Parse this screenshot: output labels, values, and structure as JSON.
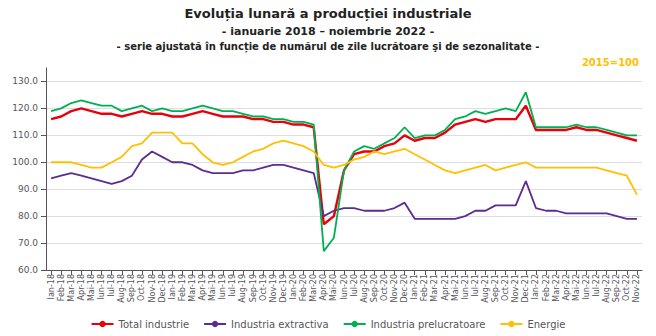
{
  "chart_data": {
    "type": "line",
    "title": "Evoluția lunară a producției industriale",
    "subtitle": [
      "- ianuarie 2018 – noiembrie 2022 -",
      "- serie ajustată în funcție de numărul de zile lucrătoare şi de sezonalitate -"
    ],
    "annotations": [
      {
        "text": "2015=100",
        "color": "#ffc000"
      }
    ],
    "categories": [
      "Ian-18",
      "Feb-18",
      "Mar-18",
      "Apr-18",
      "Mai-18",
      "Iun-18",
      "Iul-18",
      "Aug-18",
      "Sep-18",
      "Oct-18",
      "Nov-18",
      "Dec-18",
      "Ian-19",
      "Feb-19",
      "Mar-19",
      "Apr-19",
      "Mai-19",
      "Iun-19",
      "Iul-19",
      "Aug-19",
      "Sep-19",
      "Oct-19",
      "Nov-19",
      "Dec-19",
      "Ian-20",
      "Feb-20",
      "Mar-20",
      "Apr-20",
      "Mai-20",
      "Iun-20",
      "Iul-20",
      "Aug-20",
      "Sep-20",
      "Oct-20",
      "Nov-20",
      "Dec-20",
      "Ian-21",
      "Feb-21",
      "Mar-21",
      "Apr-21",
      "Mai-21",
      "Iun-21",
      "Iul-21",
      "Aug-21",
      "Sep-21",
      "Oct-21",
      "Nov-21",
      "Dec-21",
      "Ian-22",
      "Feb-22",
      "Mar-22",
      "Apr-22",
      "Mai-22",
      "Iun-22",
      "Iul-22",
      "Aug-22",
      "Sep-22",
      "Oct-22",
      "Nov-22"
    ],
    "series": [
      {
        "name": "Total industrie",
        "color": "#e8000b",
        "values": [
          116,
          117,
          119,
          120,
          119,
          118,
          118,
          117,
          118,
          119,
          118,
          118,
          117,
          117,
          118,
          119,
          118,
          117,
          117,
          117,
          116,
          116,
          115,
          115,
          114,
          114,
          113,
          77,
          80,
          97,
          103,
          104,
          104,
          106,
          107,
          110,
          108,
          109,
          109,
          111,
          114,
          115,
          116,
          115,
          116,
          116,
          116,
          121,
          112,
          112,
          112,
          112,
          113,
          112,
          112,
          111,
          110,
          109,
          108
        ]
      },
      {
        "name": "Industria extractiva",
        "color": "#5c2d91",
        "values": [
          94,
          95,
          96,
          95,
          94,
          93,
          92,
          93,
          95,
          101,
          104,
          102,
          100,
          100,
          99,
          97,
          96,
          96,
          96,
          97,
          97,
          98,
          99,
          99,
          98,
          97,
          96,
          80,
          82,
          83,
          83,
          82,
          82,
          82,
          83,
          85,
          79,
          79,
          79,
          79,
          79,
          80,
          82,
          82,
          84,
          84,
          84,
          93,
          83,
          82,
          82,
          81,
          81,
          81,
          81,
          81,
          80,
          79,
          79
        ]
      },
      {
        "name": "Industria prelucratoare",
        "color": "#00b050",
        "values": [
          119,
          120,
          122,
          123,
          122,
          121,
          121,
          119,
          120,
          121,
          119,
          120,
          119,
          119,
          120,
          121,
          120,
          119,
          119,
          118,
          117,
          117,
          116,
          116,
          115,
          115,
          114,
          67,
          72,
          97,
          104,
          106,
          105,
          107,
          109,
          113,
          109,
          110,
          110,
          112,
          116,
          117,
          119,
          118,
          119,
          120,
          119,
          126,
          113,
          113,
          113,
          113,
          114,
          113,
          113,
          112,
          111,
          110,
          110
        ]
      },
      {
        "name": "Energie",
        "color": "#ffc000",
        "values": [
          100,
          100,
          100,
          99,
          98,
          98,
          100,
          102,
          106,
          107,
          111,
          111,
          111,
          107,
          107,
          103,
          100,
          99,
          100,
          102,
          104,
          105,
          107,
          108,
          107,
          106,
          104,
          99,
          98,
          99,
          101,
          102,
          104,
          103,
          104,
          105,
          103,
          101,
          99,
          97,
          96,
          97,
          98,
          99,
          97,
          98,
          99,
          100,
          98,
          98,
          98,
          98,
          98,
          98,
          98,
          97,
          96,
          95,
          88
        ]
      }
    ],
    "ylim": [
      60.0,
      135.0
    ],
    "yticks": [
      {
        "value": 60,
        "label": "60.0"
      },
      {
        "value": 70,
        "label": "70.0"
      },
      {
        "value": 80,
        "label": "80.0"
      },
      {
        "value": 90,
        "label": "90.0"
      },
      {
        "value": 100,
        "label": "100.0"
      },
      {
        "value": 110,
        "label": "110.0"
      },
      {
        "value": 120,
        "label": "120.0"
      },
      {
        "value": 130,
        "label": "130.0"
      }
    ],
    "grid": true,
    "legend": "bottom"
  }
}
